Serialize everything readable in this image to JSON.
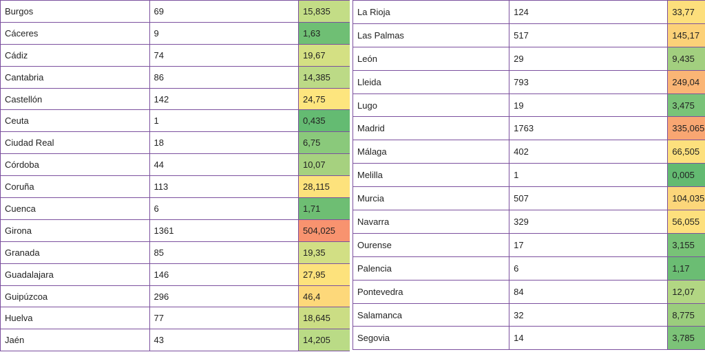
{
  "left_rows": [
    {
      "province": "Burgos",
      "cases": "69",
      "rate": "15,835",
      "color": "#c3dd86"
    },
    {
      "province": "Cáceres",
      "cases": "9",
      "rate": "1,63",
      "color": "#6fbf74"
    },
    {
      "province": "Cádiz",
      "cases": "74",
      "rate": "19,67",
      "color": "#d4e083"
    },
    {
      "province": "Cantabria",
      "cases": "86",
      "rate": "14,385",
      "color": "#bcda86"
    },
    {
      "province": "Castellón",
      "cases": "142",
      "rate": "24,75",
      "color": "#fde57e"
    },
    {
      "province": "Ceuta",
      "cases": "1",
      "rate": "0,435",
      "color": "#64bb72"
    },
    {
      "province": "Ciudad Real",
      "cases": "18",
      "rate": "6,75",
      "color": "#8ac97b"
    },
    {
      "province": "Córdoba",
      "cases": "44",
      "rate": "10,07",
      "color": "#a6d17f"
    },
    {
      "province": "Coruña",
      "cases": "113",
      "rate": "28,115",
      "color": "#fde27c"
    },
    {
      "province": "Cuenca",
      "cases": "6",
      "rate": "1,71",
      "color": "#6ebe73"
    },
    {
      "province": "Girona",
      "cases": "1361",
      "rate": "504,025",
      "color": "#f8936f"
    },
    {
      "province": "Granada",
      "cases": "85",
      "rate": "19,35",
      "color": "#d2df84"
    },
    {
      "province": "Guadalajara",
      "cases": "146",
      "rate": "27,95",
      "color": "#fde27c"
    },
    {
      "province": "Guipúzcoa",
      "cases": "296",
      "rate": "46,4",
      "color": "#fdd87a"
    },
    {
      "province": "Huelva",
      "cases": "77",
      "rate": "18,645",
      "color": "#cbdd84"
    },
    {
      "province": "Jaén",
      "cases": "43",
      "rate": "14,205",
      "color": "#badb86"
    }
  ],
  "right_rows": [
    {
      "province": "La Rioja",
      "cases": "124",
      "rate": "33,77",
      "color": "#fddf7c"
    },
    {
      "province": "Las Palmas",
      "cases": "517",
      "rate": "145,17",
      "color": "#fcd178"
    },
    {
      "province": "León",
      "cases": "29",
      "rate": "9,435",
      "color": "#a2cf7f"
    },
    {
      "province": "Lleida",
      "cases": "793",
      "rate": "249,04",
      "color": "#fab575"
    },
    {
      "province": "Lugo",
      "cases": "19",
      "rate": "3,475",
      "color": "#7ac378"
    },
    {
      "province": "Madrid",
      "cases": "1763",
      "rate": "335,065",
      "color": "#f9a672"
    },
    {
      "province": "Málaga",
      "cases": "402",
      "rate": "66,505",
      "color": "#fde07d"
    },
    {
      "province": "Melilla",
      "cases": "1",
      "rate": "0,005",
      "color": "#63ba71"
    },
    {
      "province": "Murcia",
      "cases": "507",
      "rate": "104,035",
      "color": "#fcd67a"
    },
    {
      "province": "Navarra",
      "cases": "329",
      "rate": "56,055",
      "color": "#fde07d"
    },
    {
      "province": "Ourense",
      "cases": "17",
      "rate": "3,155",
      "color": "#78c277"
    },
    {
      "province": "Palencia",
      "cases": "6",
      "rate": "1,17",
      "color": "#6bbd73"
    },
    {
      "province": "Pontevedra",
      "cases": "84",
      "rate": "12,07",
      "color": "#b2d683"
    },
    {
      "province": "Salamanca",
      "cases": "32",
      "rate": "8,775",
      "color": "#9bcd7d"
    },
    {
      "province": "Segovia",
      "cases": "14",
      "rate": "3,785",
      "color": "#7cc378"
    }
  ]
}
